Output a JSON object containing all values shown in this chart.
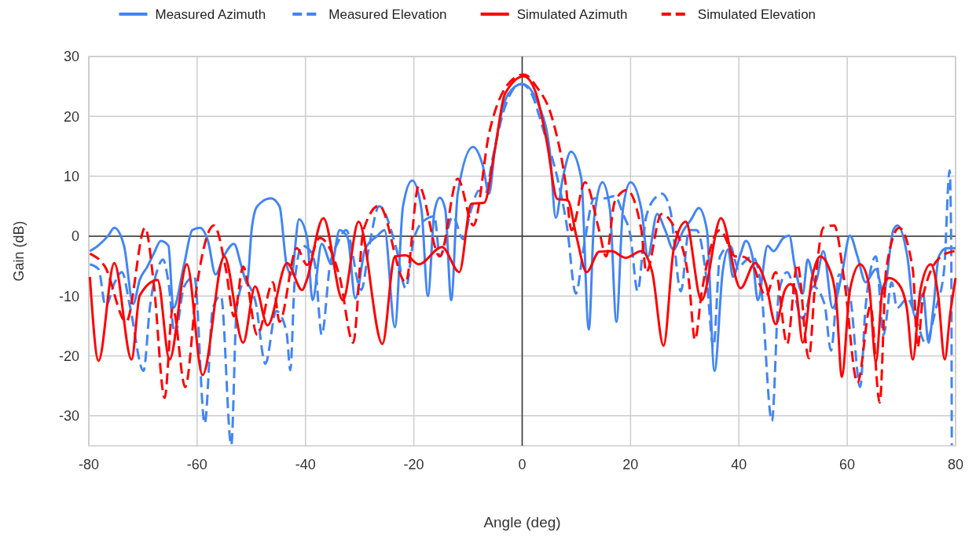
{
  "chart_data": {
    "type": "line",
    "xlabel": "Angle (deg)",
    "ylabel": "Gain (dB)",
    "xlim": [
      -80,
      80
    ],
    "xticks": [
      -80,
      -60,
      -40,
      -20,
      0,
      20,
      40,
      60,
      80
    ],
    "ylim": [
      -35,
      30
    ],
    "yticks": [
      -30,
      -20,
      -10,
      0,
      10,
      20,
      30
    ],
    "grid": true,
    "legend": "top",
    "series": [
      {
        "name": "Measured Azimuth",
        "color": "#4285f4",
        "line_style": "solid",
        "x": [
          -79.8,
          -78.3,
          -76.4,
          -75.3,
          -73.5,
          -71.8,
          -70.6,
          -69.2,
          -68,
          -66.7,
          -65.3,
          -64.4,
          -62.4,
          -60.9,
          -59.5,
          -58,
          -56.6,
          -55.1,
          -53.2,
          -51.8,
          -50.8,
          -49.9,
          -48.9,
          -46.4,
          -44.8,
          -43.5,
          -42.6,
          -41.2,
          -39.7,
          -38.7,
          -37,
          -35.2,
          -33.7,
          -32.2,
          -30.8,
          -29,
          -26.8,
          -25.4,
          -23.5,
          -22,
          -20.3,
          -18.6,
          -17.4,
          -16.2,
          -15.2,
          -14.2,
          -13.1,
          -11.9,
          -9.1,
          -7.3,
          -6.1,
          -5.1,
          -2.6,
          0,
          3.2,
          5.1,
          6.2,
          7.5,
          9,
          10.9,
          12.3,
          13.3,
          14.8,
          16.2,
          17.4,
          18.6,
          20,
          22,
          23.2,
          24.9,
          26.4,
          27.9,
          29.8,
          31.2,
          32.6,
          34.1,
          35.5,
          37,
          38,
          38.9,
          40.3,
          41.3,
          42.5,
          43.5,
          45.3,
          46.4,
          48.2,
          49.3,
          50.3,
          51.8,
          52.7,
          54.1,
          55.6,
          57.3,
          59,
          60.5,
          61.9,
          63.4,
          65.3,
          66.7,
          68.5,
          69.3,
          71.1,
          72.5,
          74,
          75,
          75.9,
          76.9,
          78.3,
          80
        ],
        "values": [
          -2.5,
          -1.6,
          0.1,
          1.4,
          -1.6,
          -11.3,
          -7.3,
          -5.1,
          -2.9,
          -0.8,
          -1.6,
          -12,
          -4.7,
          1,
          1.4,
          -0.8,
          -6.4,
          -3.4,
          -1.3,
          -5.1,
          -7.7,
          1.4,
          5,
          6.3,
          5,
          -4.7,
          -6.4,
          2.8,
          -0.3,
          -10.7,
          -1.3,
          -4.7,
          1,
          -0.3,
          -10.4,
          -2.2,
          0,
          1,
          -15.2,
          5,
          9.3,
          4.5,
          -10,
          4.1,
          6.4,
          4.5,
          -10.7,
          7.1,
          14.9,
          11.9,
          7.1,
          14.1,
          23.7,
          25.4,
          21.5,
          14.1,
          3.1,
          9.7,
          14.1,
          9.7,
          -15.6,
          3.1,
          9,
          4.5,
          -14.3,
          4.5,
          9,
          4.5,
          -3.4,
          3.7,
          1,
          -2.2,
          1,
          2.8,
          4.7,
          1,
          -22.5,
          -6,
          -2.2,
          -6.8,
          -3,
          -0.8,
          -3.4,
          -10.7,
          -1.6,
          -2.5,
          -0.3,
          0.1,
          -4.9,
          -9.6,
          -3.9,
          -7.7,
          -2.5,
          -12,
          -6.4,
          0.1,
          -3.4,
          -7.7,
          -5.5,
          -9.6,
          1,
          1.8,
          -3.4,
          -13.4,
          -9.6,
          -17.8,
          -12,
          -3.4,
          -2,
          -2
        ]
      },
      {
        "name": "Measured Elevation",
        "color": "#4285f4",
        "line_style": "dashed",
        "x": [
          -79.8,
          -78.2,
          -76.9,
          -75.2,
          -73.9,
          -72.4,
          -69.9,
          -68.7,
          -67.3,
          -66.3,
          -65.3,
          -64.1,
          -62.4,
          -60.5,
          -58.6,
          -57.1,
          -55.6,
          -53.7,
          -52.7,
          -51.3,
          -49.3,
          -47.4,
          -45.4,
          -43.5,
          -42.8,
          -42,
          -40.6,
          -39.1,
          -38.2,
          -37,
          -35.5,
          -34,
          -32.5,
          -29.7,
          -28.3,
          -26.4,
          -23.2,
          -21.5,
          -20,
          -18.1,
          -16.2,
          -15.2,
          -12.8,
          -10.9,
          -9.4,
          -8,
          -6.8,
          -5.5,
          -3.2,
          -0.3,
          1.2,
          4.1,
          6.5,
          8.3,
          9.9,
          11.3,
          13.3,
          15.2,
          17.1,
          18.6,
          20,
          21.3,
          22.9,
          24.9,
          25.8,
          27.3,
          29.3,
          30.8,
          32.2,
          34.1,
          35.3,
          36.5,
          38.4,
          39.9,
          40.6,
          42.5,
          44,
          46.1,
          47.4,
          48.9,
          51.8,
          53.7,
          55.8,
          57,
          58.5,
          60.5,
          62.4,
          63.4,
          65.3,
          66.7,
          68.2,
          69.2,
          71.1,
          73,
          74.4,
          76.4,
          77.9,
          78.9,
          79.2,
          79.3
        ],
        "values": [
          -4.7,
          -5.5,
          -11.7,
          -7.7,
          -6,
          -11.7,
          -22.5,
          -11.7,
          -5.5,
          -3.9,
          -7.7,
          -16.5,
          -8.4,
          -6.8,
          -31.3,
          -12,
          -10,
          -34.9,
          -12,
          -7.7,
          -10.7,
          -21.3,
          -12.5,
          -16,
          -22.4,
          -7.7,
          -1.6,
          -2.5,
          -5,
          -16.5,
          -5,
          -1,
          1,
          -9,
          -2,
          5,
          -2.2,
          -8.7,
          -0.5,
          2.6,
          3.3,
          -3.4,
          3.3,
          -0.5,
          4.5,
          7.6,
          7.1,
          12.8,
          21.5,
          25.4,
          24.6,
          17.2,
          9.7,
          1.4,
          -9.6,
          -2.2,
          6.3,
          6.3,
          6.7,
          3.7,
          0,
          -9.2,
          3.3,
          6.7,
          7.1,
          4.5,
          -9.2,
          1,
          1,
          -7.7,
          -18.6,
          -3.4,
          -1.6,
          -5.5,
          -4.7,
          -3.4,
          -7.7,
          -30.9,
          -9.2,
          -6,
          -13.8,
          -8.4,
          -11.3,
          -19.1,
          -6.4,
          -10,
          -25.2,
          -11.7,
          -3.4,
          -16.5,
          -7.7,
          -12,
          -10.4,
          -14.7,
          -17.8,
          -12,
          -5.5,
          11,
          -2,
          -34.9
        ]
      },
      {
        "name": "Simulated Azimuth",
        "color": "#ff0000",
        "line_style": "solid",
        "x": [
          -79.8,
          -78.2,
          -75.3,
          -72.1,
          -70.6,
          -67.3,
          -65.1,
          -61.9,
          -59,
          -55,
          -51.5,
          -49.3,
          -47,
          -43.4,
          -40.6,
          -39.9,
          -36.7,
          -33.1,
          -30.2,
          -25.8,
          -23.5,
          -21.5,
          -19.1,
          -14.8,
          -11.6,
          -9.4,
          -7,
          -5.1,
          -3.2,
          0.3,
          2.5,
          4.5,
          6.5,
          8.4,
          10,
          11.9,
          14.2,
          16.5,
          19.1,
          22,
          24,
          26.1,
          28,
          30.2,
          33.1,
          36.7,
          40.3,
          43,
          45,
          46.8,
          48.5,
          49.5,
          50.5,
          51.8,
          53.5,
          55,
          56.5,
          58,
          59,
          60.5,
          62.4,
          64,
          65.3,
          66.5,
          67.7,
          69.5,
          71,
          72.1,
          73.5,
          75.4,
          76.8,
          78,
          79,
          80
        ],
        "values": [
          -6.8,
          -20.8,
          -4.5,
          -20.6,
          -9.9,
          -7.3,
          -20.6,
          -4.7,
          -23.2,
          -3.4,
          -17.8,
          -8.4,
          -14.9,
          -4.5,
          -9,
          -7.7,
          3,
          -10.7,
          2.4,
          -18,
          -3.4,
          -3.2,
          -4.7,
          -1.8,
          -6,
          5.4,
          5.6,
          14.1,
          23.7,
          26.7,
          24,
          16,
          6.2,
          6,
          0,
          -6,
          -2.6,
          -2.5,
          -3.6,
          -2.5,
          -6,
          -18.3,
          -2,
          2.4,
          -10.7,
          3,
          -8.7,
          -4.5,
          -8,
          -14.7,
          -9,
          -8,
          -9,
          -17.8,
          -7,
          -3.4,
          -5,
          -11,
          -23.5,
          -9,
          -4.7,
          -8,
          -21,
          -9,
          -7,
          -8,
          -12,
          -20.6,
          -9,
          -4.7,
          -10,
          -20.6,
          -13,
          -7
        ]
      },
      {
        "name": "Simulated Elevation",
        "color": "#ff0000",
        "line_style": "dashed",
        "x": [
          -79.8,
          -77,
          -73.1,
          -69.6,
          -68,
          -66,
          -64.5,
          -62.2,
          -60,
          -56.9,
          -54.7,
          -53.2,
          -51.5,
          -48.9,
          -46,
          -44.8,
          -41.6,
          -39.7,
          -37.4,
          -33.7,
          -31.2,
          -29.3,
          -26.4,
          -21.5,
          -19.1,
          -15.2,
          -11.9,
          -9,
          -6.1,
          -2.6,
          0.3,
          2.6,
          5.5,
          8,
          9.1,
          11.6,
          14.2,
          15.5,
          17.1,
          19.3,
          22,
          22.9,
          25.7,
          28.3,
          30.8,
          31.9,
          33.1,
          36.5,
          39.4,
          40.6,
          42.5,
          45,
          46.8,
          48.9,
          50.8,
          52.9,
          54.1,
          55.6,
          57.6,
          59.5,
          61.9,
          64.3,
          66,
          67.2,
          69.6,
          72.1,
          73,
          74,
          77.3,
          79.8
        ],
        "values": [
          -2.9,
          -5.1,
          -14.3,
          1.4,
          -8,
          -27,
          -12,
          -25.2,
          -8,
          1.8,
          -5.5,
          -13.4,
          -5.1,
          -16.5,
          -7.7,
          -14.3,
          -2,
          -4.8,
          -0.3,
          -6.8,
          -17.8,
          1,
          5.1,
          -7.7,
          8.4,
          -3.4,
          9.6,
          1.8,
          17.2,
          25.4,
          27,
          25,
          19.8,
          8.9,
          1,
          9,
          1,
          -3.4,
          5.8,
          7.7,
          1,
          -6,
          3.7,
          1,
          -7.7,
          -17.3,
          -9.6,
          1,
          -3.4,
          -3.4,
          -4.7,
          -10,
          -6,
          -18,
          -4.7,
          -20.4,
          -7.7,
          1.4,
          1.8,
          -7.7,
          -24.5,
          -11.7,
          -27.8,
          -5.5,
          1.4,
          -5.5,
          -18.6,
          -10,
          -3.4,
          -2.5
        ]
      }
    ]
  }
}
